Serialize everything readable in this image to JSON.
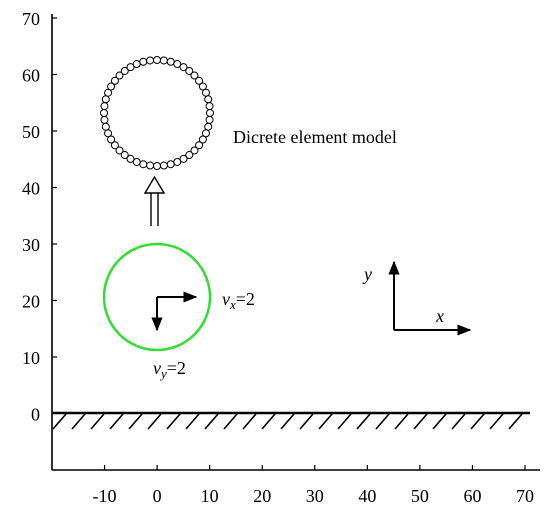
{
  "axes": {
    "xlim": [
      -20,
      70
    ],
    "ylim": [
      -10,
      70
    ],
    "xticks": [
      -10,
      0,
      10,
      20,
      30,
      40,
      50,
      60,
      70
    ],
    "yticks": [
      0,
      10,
      20,
      30,
      40,
      50,
      60,
      70
    ]
  },
  "labels": {
    "model": "Dicrete element model",
    "vx": {
      "symbol": "v",
      "sub": "x",
      "eq": "=2"
    },
    "vy": {
      "symbol": "v",
      "sub": "y",
      "eq": "=2"
    },
    "axis_x": "x",
    "axis_y": "y"
  }
}
